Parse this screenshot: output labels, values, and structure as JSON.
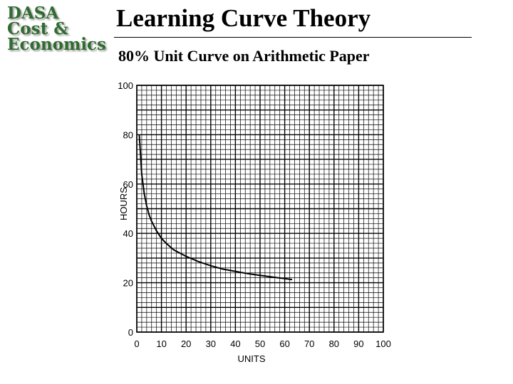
{
  "logo": {
    "lines": [
      "DASA",
      "Cost &",
      "Economics"
    ]
  },
  "header": {
    "title": "Learning Curve Theory",
    "subtitle": "80% Unit Curve on Arithmetic Paper"
  },
  "colors": {
    "logo_text": "#2f6b2f",
    "grid": "#000000",
    "curve": "#000000"
  },
  "chart_data": {
    "type": "line",
    "xlabel": "UNITS",
    "ylabel": "HOURS",
    "xlim": [
      0,
      100
    ],
    "ylim": [
      0,
      100
    ],
    "xticks": [
      0,
      10,
      20,
      30,
      40,
      50,
      60,
      70,
      80,
      90,
      100
    ],
    "yticks": [
      0,
      20,
      40,
      60,
      80,
      100
    ],
    "grid": true,
    "series": [
      {
        "x": [
          1,
          2,
          3,
          4,
          5,
          6,
          8,
          10,
          12,
          15,
          20,
          25,
          30,
          35,
          40,
          45,
          50,
          55,
          60,
          63
        ],
        "y": [
          80,
          64,
          56.2,
          51.2,
          47.5,
          44.9,
          41,
          38,
          35.9,
          33.3,
          30.7,
          28.6,
          26.9,
          25.5,
          24.6,
          23.7,
          23,
          22.3,
          21.7,
          21.3
        ]
      }
    ]
  }
}
